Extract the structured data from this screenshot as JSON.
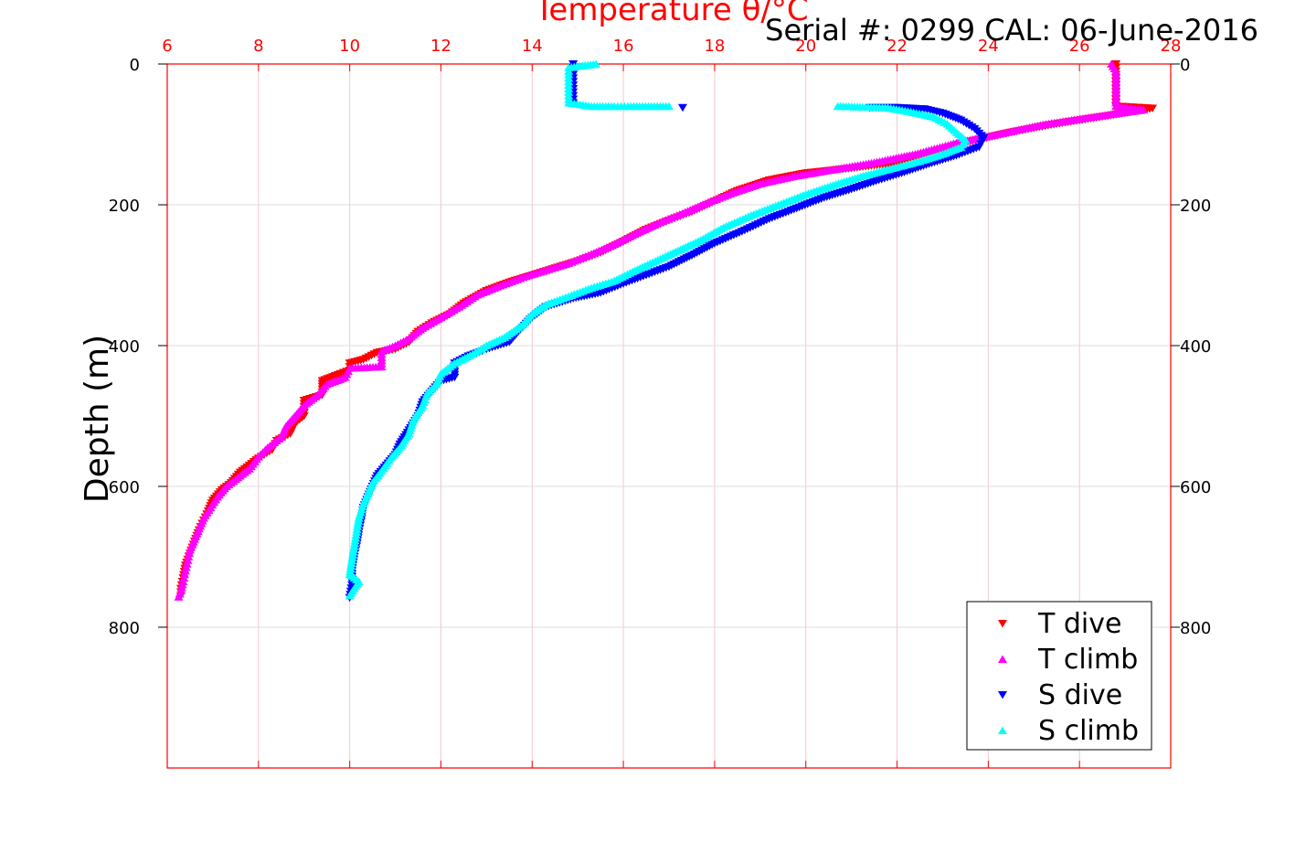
{
  "chart_data": {
    "type": "scatter",
    "title": "Temperature θ/°C",
    "subtitle": "Serial #: 0299 CAL: 06-June-2016",
    "ylabel": "Depth (m)",
    "xlim": [
      6,
      28
    ],
    "ylim": [
      0,
      1000
    ],
    "y_reversed": true,
    "x_ticks": [
      6,
      8,
      10,
      12,
      14,
      16,
      18,
      20,
      22,
      24,
      26,
      28
    ],
    "y_ticks": [
      0,
      200,
      400,
      600,
      800
    ],
    "grid": true,
    "legend_position": "bottom-right",
    "colors": {
      "axis_top": "#ff0000",
      "axis_box": "#000000",
      "grid": "#dcdcdc",
      "grid_x": "#f2c8d0"
    },
    "series": [
      {
        "name": "T dive",
        "marker": "triangle-down",
        "color": "#ff0000",
        "points": [
          [
            26.8,
            0
          ],
          [
            26.8,
            10
          ],
          [
            26.8,
            20
          ],
          [
            26.8,
            30
          ],
          [
            26.8,
            40
          ],
          [
            26.8,
            50
          ],
          [
            26.8,
            60
          ],
          [
            27.6,
            63
          ],
          [
            26.5,
            75
          ],
          [
            25.5,
            85
          ],
          [
            24.5,
            97
          ],
          [
            23.6,
            110
          ],
          [
            22.8,
            125
          ],
          [
            22.0,
            140
          ],
          [
            21.0,
            148
          ],
          [
            20.0,
            155
          ],
          [
            19.2,
            165
          ],
          [
            18.5,
            180
          ],
          [
            18.0,
            195
          ],
          [
            17.5,
            210
          ],
          [
            17.0,
            222
          ],
          [
            16.5,
            235
          ],
          [
            16.0,
            252
          ],
          [
            15.5,
            268
          ],
          [
            15.0,
            280
          ],
          [
            14.5,
            290
          ],
          [
            14.0,
            300
          ],
          [
            13.5,
            310
          ],
          [
            13.0,
            322
          ],
          [
            12.5,
            340
          ],
          [
            12.2,
            355
          ],
          [
            11.8,
            368
          ],
          [
            11.5,
            380
          ],
          [
            11.3,
            395
          ],
          [
            11.0,
            405
          ],
          [
            10.6,
            410
          ],
          [
            10.3,
            420
          ],
          [
            10.0,
            425
          ],
          [
            10.0,
            435
          ],
          [
            9.8,
            440
          ],
          [
            9.4,
            450
          ],
          [
            9.4,
            470
          ],
          [
            9.0,
            478
          ],
          [
            9.0,
            500
          ],
          [
            8.8,
            510
          ],
          [
            8.7,
            525
          ],
          [
            8.4,
            535
          ],
          [
            8.3,
            548
          ],
          [
            8.0,
            560
          ],
          [
            7.8,
            570
          ],
          [
            7.6,
            580
          ],
          [
            7.4,
            595
          ],
          [
            7.2,
            605
          ],
          [
            7.0,
            620
          ],
          [
            6.9,
            635
          ],
          [
            6.8,
            648
          ],
          [
            6.7,
            662
          ],
          [
            6.6,
            678
          ],
          [
            6.5,
            695
          ],
          [
            6.4,
            712
          ],
          [
            6.35,
            730
          ],
          [
            6.3,
            745
          ],
          [
            6.3,
            755
          ]
        ]
      },
      {
        "name": "T climb",
        "marker": "triangle-up",
        "color": "#ff00ff",
        "points": [
          [
            26.7,
            0
          ],
          [
            26.8,
            10
          ],
          [
            26.8,
            20
          ],
          [
            26.8,
            30
          ],
          [
            26.8,
            40
          ],
          [
            26.8,
            50
          ],
          [
            26.8,
            60
          ],
          [
            27.4,
            65
          ],
          [
            26.2,
            76
          ],
          [
            25.2,
            86
          ],
          [
            24.2,
            100
          ],
          [
            23.3,
            112
          ],
          [
            22.4,
            128
          ],
          [
            21.5,
            140
          ],
          [
            20.6,
            150
          ],
          [
            19.7,
            160
          ],
          [
            19.0,
            170
          ],
          [
            18.4,
            183
          ],
          [
            17.8,
            198
          ],
          [
            17.3,
            212
          ],
          [
            16.8,
            225
          ],
          [
            16.3,
            240
          ],
          [
            15.8,
            256
          ],
          [
            15.3,
            270
          ],
          [
            14.8,
            283
          ],
          [
            14.3,
            293
          ],
          [
            13.8,
            303
          ],
          [
            13.3,
            315
          ],
          [
            12.8,
            328
          ],
          [
            12.4,
            345
          ],
          [
            12.0,
            360
          ],
          [
            11.6,
            375
          ],
          [
            11.3,
            390
          ],
          [
            11.0,
            400
          ],
          [
            10.7,
            408
          ],
          [
            10.7,
            430
          ],
          [
            10.0,
            432
          ],
          [
            9.9,
            445
          ],
          [
            9.5,
            455
          ],
          [
            9.3,
            470
          ],
          [
            9.0,
            485
          ],
          [
            8.8,
            500
          ],
          [
            8.6,
            515
          ],
          [
            8.5,
            530
          ],
          [
            8.2,
            545
          ],
          [
            8.0,
            558
          ],
          [
            7.8,
            575
          ],
          [
            7.5,
            590
          ],
          [
            7.3,
            600
          ],
          [
            7.1,
            615
          ],
          [
            6.95,
            630
          ],
          [
            6.8,
            645
          ],
          [
            6.7,
            660
          ],
          [
            6.6,
            675
          ],
          [
            6.5,
            690
          ],
          [
            6.45,
            705
          ],
          [
            6.4,
            720
          ],
          [
            6.35,
            735
          ],
          [
            6.3,
            748
          ],
          [
            6.25,
            757
          ]
        ]
      },
      {
        "name": "S dive",
        "marker": "triangle-down",
        "color": "#0000ff",
        "points": [
          [
            14.9,
            0
          ],
          [
            14.9,
            10
          ],
          [
            14.9,
            20
          ],
          [
            14.9,
            30
          ],
          [
            14.9,
            40
          ],
          [
            14.9,
            50
          ],
          [
            14.9,
            55
          ],
          [
            17.3,
            62
          ],
          [
            21.4,
            62
          ],
          [
            22.0,
            62
          ],
          [
            22.6,
            64
          ],
          [
            23.0,
            70
          ],
          [
            23.4,
            80
          ],
          [
            23.7,
            92
          ],
          [
            23.9,
            105
          ],
          [
            23.8,
            118
          ],
          [
            23.3,
            130
          ],
          [
            22.7,
            142
          ],
          [
            22.1,
            155
          ],
          [
            21.6,
            165
          ],
          [
            21.0,
            178
          ],
          [
            20.4,
            190
          ],
          [
            19.8,
            205
          ],
          [
            19.2,
            220
          ],
          [
            18.6,
            238
          ],
          [
            18.0,
            255
          ],
          [
            17.5,
            272
          ],
          [
            17.0,
            288
          ],
          [
            16.5,
            300
          ],
          [
            16.0,
            312
          ],
          [
            15.5,
            325
          ],
          [
            14.9,
            333
          ],
          [
            14.3,
            345
          ],
          [
            14.0,
            360
          ],
          [
            13.7,
            380
          ],
          [
            13.5,
            395
          ],
          [
            13.0,
            405
          ],
          [
            12.9,
            408
          ],
          [
            12.6,
            415
          ],
          [
            12.3,
            425
          ],
          [
            12.3,
            445
          ],
          [
            12.0,
            450
          ],
          [
            11.8,
            465
          ],
          [
            11.6,
            480
          ],
          [
            11.5,
            500
          ],
          [
            11.3,
            520
          ],
          [
            11.1,
            540
          ],
          [
            11.0,
            555
          ],
          [
            10.8,
            570
          ],
          [
            10.6,
            585
          ],
          [
            10.5,
            600
          ],
          [
            10.4,
            615
          ],
          [
            10.3,
            630
          ],
          [
            10.25,
            650
          ],
          [
            10.2,
            665
          ],
          [
            10.15,
            685
          ],
          [
            10.1,
            700
          ],
          [
            10.05,
            720
          ],
          [
            10.05,
            740
          ],
          [
            10.0,
            758
          ]
        ]
      },
      {
        "name": "S climb",
        "marker": "triangle-up",
        "color": "#00ffff",
        "points": [
          [
            15.4,
            0
          ],
          [
            14.8,
            5
          ],
          [
            14.8,
            15
          ],
          [
            14.8,
            25
          ],
          [
            14.8,
            35
          ],
          [
            14.8,
            45
          ],
          [
            14.8,
            55
          ],
          [
            15.3,
            60
          ],
          [
            15.8,
            60
          ],
          [
            16.1,
            60
          ],
          [
            17.0,
            60
          ],
          [
            20.7,
            60
          ],
          [
            21.8,
            62
          ],
          [
            22.3,
            68
          ],
          [
            22.8,
            75
          ],
          [
            23.1,
            85
          ],
          [
            23.3,
            97
          ],
          [
            23.5,
            108
          ],
          [
            23.4,
            118
          ],
          [
            23.0,
            128
          ],
          [
            22.5,
            138
          ],
          [
            21.9,
            148
          ],
          [
            21.2,
            160
          ],
          [
            20.6,
            172
          ],
          [
            20.0,
            185
          ],
          [
            19.4,
            200
          ],
          [
            18.8,
            215
          ],
          [
            18.2,
            232
          ],
          [
            17.7,
            250
          ],
          [
            17.2,
            265
          ],
          [
            16.7,
            280
          ],
          [
            16.2,
            295
          ],
          [
            15.8,
            308
          ],
          [
            15.3,
            318
          ],
          [
            14.8,
            330
          ],
          [
            14.3,
            342
          ],
          [
            14.0,
            355
          ],
          [
            13.8,
            370
          ],
          [
            13.4,
            388
          ],
          [
            13.0,
            400
          ],
          [
            12.7,
            412
          ],
          [
            12.3,
            425
          ],
          [
            12.0,
            440
          ],
          [
            11.9,
            455
          ],
          [
            11.7,
            468
          ],
          [
            11.6,
            485
          ],
          [
            11.4,
            505
          ],
          [
            11.3,
            525
          ],
          [
            11.1,
            545
          ],
          [
            10.9,
            560
          ],
          [
            10.7,
            578
          ],
          [
            10.5,
            595
          ],
          [
            10.4,
            610
          ],
          [
            10.3,
            625
          ],
          [
            10.2,
            645
          ],
          [
            10.15,
            665
          ],
          [
            10.1,
            685
          ],
          [
            10.05,
            705
          ],
          [
            10.0,
            725
          ],
          [
            10.2,
            735
          ],
          [
            10.0,
            755
          ]
        ]
      }
    ]
  }
}
